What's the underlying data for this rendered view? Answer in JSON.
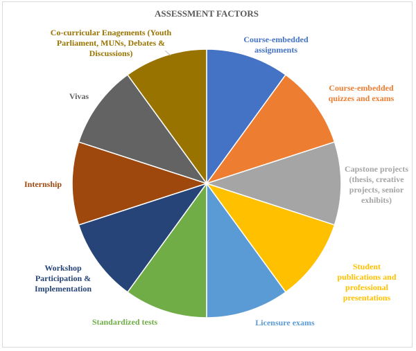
{
  "chart_data": {
    "type": "pie",
    "title": "ASSESSMENT FACTORS",
    "categories": [
      "Course-embedded assignments",
      "Course-embedded quizzes and exams",
      "Capstone projects (thesis, creative projects, senior exhibits)",
      "Student publications and professional presentations",
      "Licensure exams",
      "Standardized tests",
      "Workshop Participation & Implementation",
      "Internship",
      "Vivas",
      "Co-curricular Enagements (Youth Parliament, MUNs, Debates & Discussions)"
    ],
    "values": [
      10,
      10,
      10,
      10,
      10,
      10,
      10,
      10,
      10,
      10
    ],
    "colors": [
      "#4472C4",
      "#ED7D31",
      "#A5A5A5",
      "#FFC000",
      "#5B9BD5",
      "#70AD47",
      "#264478",
      "#9E480E",
      "#636363",
      "#997300"
    ],
    "legend": "none",
    "labels": [
      {
        "lines": [
          "Course-embedded",
          "assignments"
        ],
        "color": "#4472C4"
      },
      {
        "lines": [
          "Course-embedded",
          "quizzes  and exams"
        ],
        "color": "#ED7D31"
      },
      {
        "lines": [
          "Capstone projects",
          "(thesis, creative",
          "projects,  senior",
          "exhibits)"
        ],
        "color": "#A5A5A5"
      },
      {
        "lines": [
          "Student",
          "publications  and",
          "professional",
          "presentations"
        ],
        "color": "#FFC000"
      },
      {
        "lines": [
          "Licensure exams"
        ],
        "color": "#5B9BD5"
      },
      {
        "lines": [
          "Standardized  tests"
        ],
        "color": "#70AD47"
      },
      {
        "lines": [
          "Workshop",
          "Participation  &",
          "Implementation"
        ],
        "color": "#264478"
      },
      {
        "lines": [
          "Internship"
        ],
        "color": "#9E480E"
      },
      {
        "lines": [
          "Vivas"
        ],
        "color": "#636363"
      },
      {
        "lines": [
          "Co-curricular  Enagements (Youth",
          "Parliament,  MUNs, Debates &",
          "Discussions)"
        ],
        "color": "#997300"
      }
    ]
  }
}
